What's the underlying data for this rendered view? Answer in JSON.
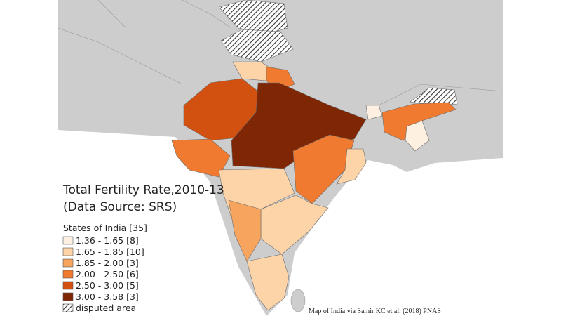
{
  "map": {
    "title": "Total Fertility Rate,2010-13",
    "subtitle": "(Data Source: SRS)",
    "legend": {
      "title": "States of India [35]",
      "items": [
        {
          "label": "1.36 - 1.65 [8]",
          "color": "#fef0e1"
        },
        {
          "label": "1.65 - 1.85 [10]",
          "color": "#fdd3a8"
        },
        {
          "label": "1.85 - 2.00 [3]",
          "color": "#f7a55e"
        },
        {
          "label": "2.00 - 2.50 [6]",
          "color": "#ef7a30"
        },
        {
          "label": "2.50 - 3.00 [5]",
          "color": "#d35110"
        },
        {
          "label": "3.00 - 3.58 [3]",
          "color": "#7f2704"
        }
      ],
      "disputed": "disputed area"
    },
    "credit": "Map of India via Samir KC et al. (2018) PNAS"
  }
}
